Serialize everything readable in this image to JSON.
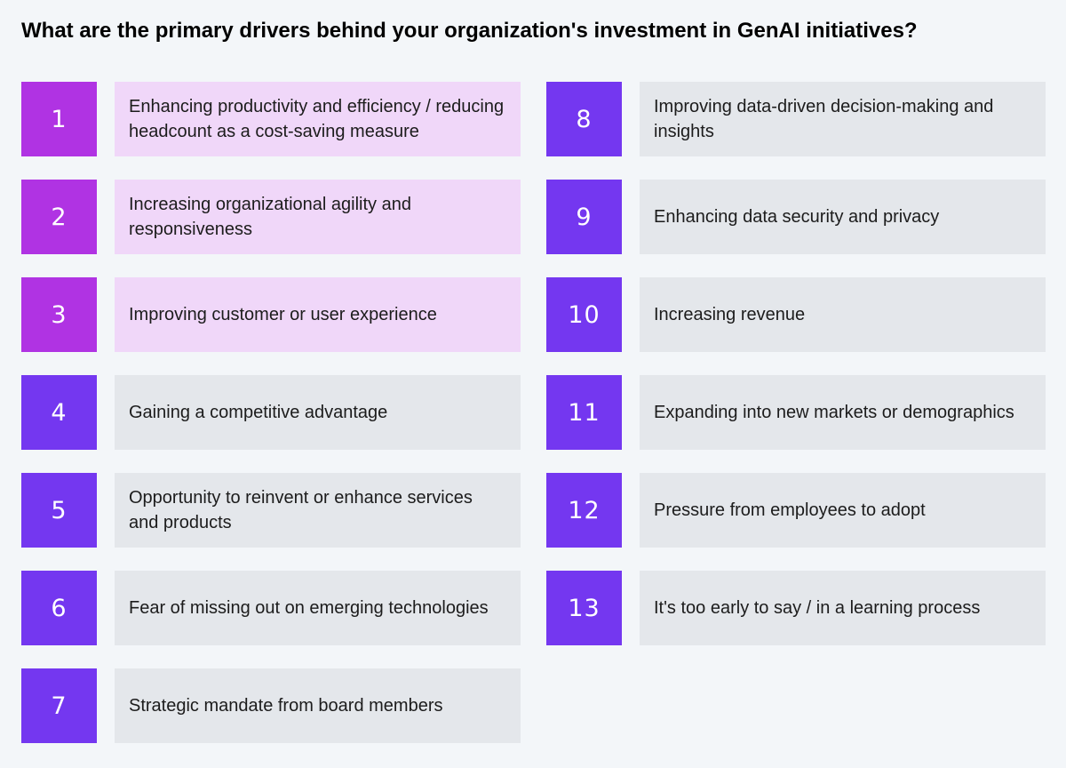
{
  "title": "What are the primary drivers behind your organization's investment in GenAI initiatives?",
  "colors": {
    "highlight_number_bg": "#b033e3",
    "highlight_label_bg": "#f0d7f9",
    "number_bg": "#7437f0",
    "label_bg": "#e4e7eb",
    "page_bg": "#f3f6f9"
  },
  "drivers_left": [
    {
      "number": "1",
      "label": "Enhancing productivity and efficiency / reducing headcount as a cost-saving measure",
      "highlighted": true
    },
    {
      "number": "2",
      "label": "Increasing organizational agility and responsiveness",
      "highlighted": true
    },
    {
      "number": "3",
      "label": "Improving customer or user experience",
      "highlighted": true
    },
    {
      "number": "4",
      "label": "Gaining a competitive advantage",
      "highlighted": false
    },
    {
      "number": "5",
      "label": "Opportunity to reinvent or enhance services and products",
      "highlighted": false
    },
    {
      "number": "6",
      "label": "Fear of missing out on emerging technologies",
      "highlighted": false
    },
    {
      "number": "7",
      "label": "Strategic mandate from board members",
      "highlighted": false
    }
  ],
  "drivers_right": [
    {
      "number": "8",
      "label": "Improving data-driven decision-making and insights",
      "highlighted": false
    },
    {
      "number": "9",
      "label": "Enhancing data security and privacy",
      "highlighted": false
    },
    {
      "number": "10",
      "label": "Increasing revenue",
      "highlighted": false
    },
    {
      "number": "11",
      "label": "Expanding into new markets or demographics",
      "highlighted": false
    },
    {
      "number": "12",
      "label": "Pressure from employees to adopt",
      "highlighted": false
    },
    {
      "number": "13",
      "label": "It's too early to say / in a learning process",
      "highlighted": false
    }
  ]
}
